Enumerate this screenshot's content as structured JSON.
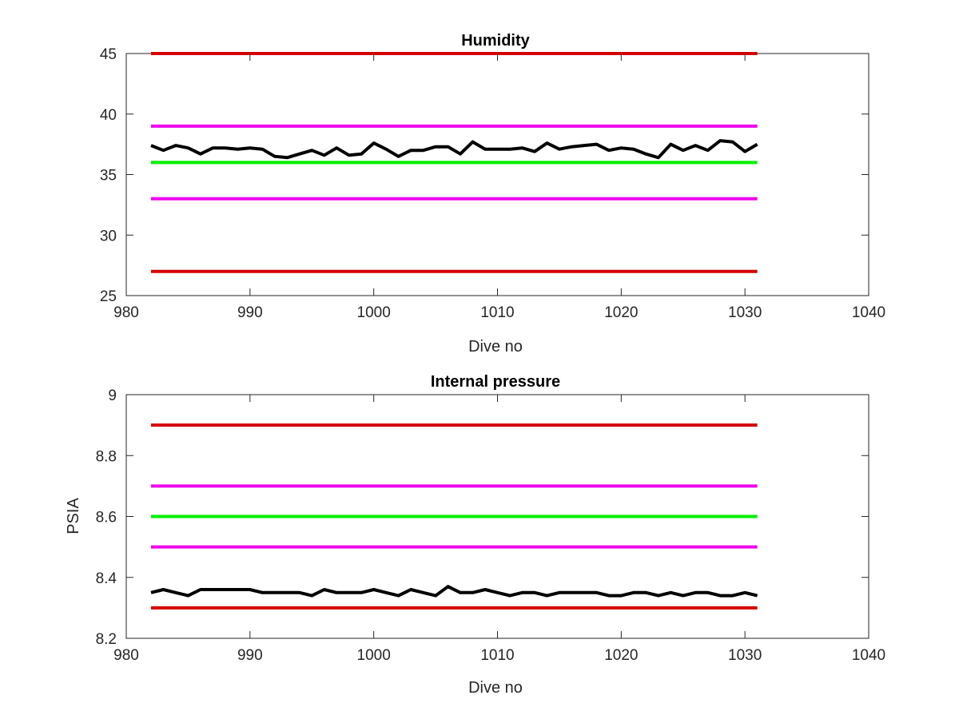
{
  "chart_data": [
    {
      "type": "line",
      "title": "Humidity",
      "xlabel": "Dive no",
      "ylabel": "",
      "xlim": [
        980,
        1040
      ],
      "ylim": [
        25,
        45
      ],
      "xticks": [
        980,
        990,
        1000,
        1010,
        1020,
        1030,
        1040
      ],
      "yticks": [
        25,
        30,
        35,
        40,
        45
      ],
      "grid": false,
      "reference_lines": [
        {
          "y": 45,
          "x_range": [
            982,
            1031
          ],
          "color": "#d40000"
        },
        {
          "y": 39,
          "x_range": [
            982,
            1031
          ],
          "color": "#ee00ee"
        },
        {
          "y": 36,
          "x_range": [
            982,
            1031
          ],
          "color": "#00ee00"
        },
        {
          "y": 33,
          "x_range": [
            982,
            1031
          ],
          "color": "#ee00ee"
        },
        {
          "y": 27,
          "x_range": [
            982,
            1031
          ],
          "color": "#d40000"
        }
      ],
      "series": [
        {
          "color": "#000000",
          "x": [
            982,
            983,
            984,
            985,
            986,
            987,
            988,
            989,
            990,
            991,
            992,
            993,
            994,
            995,
            996,
            997,
            998,
            999,
            1000,
            1001,
            1002,
            1003,
            1004,
            1005,
            1006,
            1007,
            1008,
            1009,
            1010,
            1011,
            1012,
            1013,
            1014,
            1015,
            1016,
            1017,
            1018,
            1019,
            1020,
            1021,
            1022,
            1023,
            1024,
            1025,
            1026,
            1027,
            1028,
            1029,
            1030,
            1031
          ],
          "y": [
            37.4,
            37.0,
            37.4,
            37.2,
            36.7,
            37.2,
            37.2,
            37.1,
            37.2,
            37.1,
            36.5,
            36.4,
            36.7,
            37.0,
            36.6,
            37.2,
            36.6,
            36.7,
            37.6,
            37.1,
            36.5,
            37.0,
            37.0,
            37.3,
            37.3,
            36.7,
            37.7,
            37.1,
            37.1,
            37.1,
            37.2,
            36.9,
            37.6,
            37.1,
            37.3,
            37.4,
            37.5,
            37.0,
            37.2,
            37.1,
            36.7,
            36.4,
            37.5,
            37.0,
            37.4,
            37.0,
            37.8,
            37.7,
            36.9,
            37.5
          ]
        }
      ]
    },
    {
      "type": "line",
      "title": "Internal pressure",
      "xlabel": "Dive no",
      "ylabel": "PSIA",
      "xlim": [
        980,
        1040
      ],
      "ylim": [
        8.2,
        9
      ],
      "xticks": [
        980,
        990,
        1000,
        1010,
        1020,
        1030,
        1040
      ],
      "yticks": [
        8.2,
        8.4,
        8.6,
        8.8,
        9
      ],
      "grid": false,
      "reference_lines": [
        {
          "y": 8.9,
          "x_range": [
            982,
            1031
          ],
          "color": "#d40000"
        },
        {
          "y": 8.7,
          "x_range": [
            982,
            1031
          ],
          "color": "#ee00ee"
        },
        {
          "y": 8.6,
          "x_range": [
            982,
            1031
          ],
          "color": "#00ee00"
        },
        {
          "y": 8.5,
          "x_range": [
            982,
            1031
          ],
          "color": "#ee00ee"
        },
        {
          "y": 8.3,
          "x_range": [
            982,
            1031
          ],
          "color": "#d40000"
        }
      ],
      "series": [
        {
          "color": "#000000",
          "x": [
            982,
            983,
            984,
            985,
            986,
            987,
            988,
            989,
            990,
            991,
            992,
            993,
            994,
            995,
            996,
            997,
            998,
            999,
            1000,
            1001,
            1002,
            1003,
            1004,
            1005,
            1006,
            1007,
            1008,
            1009,
            1010,
            1011,
            1012,
            1013,
            1014,
            1015,
            1016,
            1017,
            1018,
            1019,
            1020,
            1021,
            1022,
            1023,
            1024,
            1025,
            1026,
            1027,
            1028,
            1029,
            1030,
            1031
          ],
          "y": [
            8.35,
            8.36,
            8.35,
            8.34,
            8.36,
            8.36,
            8.36,
            8.36,
            8.36,
            8.35,
            8.35,
            8.35,
            8.35,
            8.34,
            8.36,
            8.35,
            8.35,
            8.35,
            8.36,
            8.35,
            8.34,
            8.36,
            8.35,
            8.34,
            8.37,
            8.35,
            8.35,
            8.36,
            8.35,
            8.34,
            8.35,
            8.35,
            8.34,
            8.35,
            8.35,
            8.35,
            8.35,
            8.34,
            8.34,
            8.35,
            8.35,
            8.34,
            8.35,
            8.34,
            8.35,
            8.35,
            8.34,
            8.34,
            8.35,
            8.34
          ]
        }
      ]
    }
  ]
}
